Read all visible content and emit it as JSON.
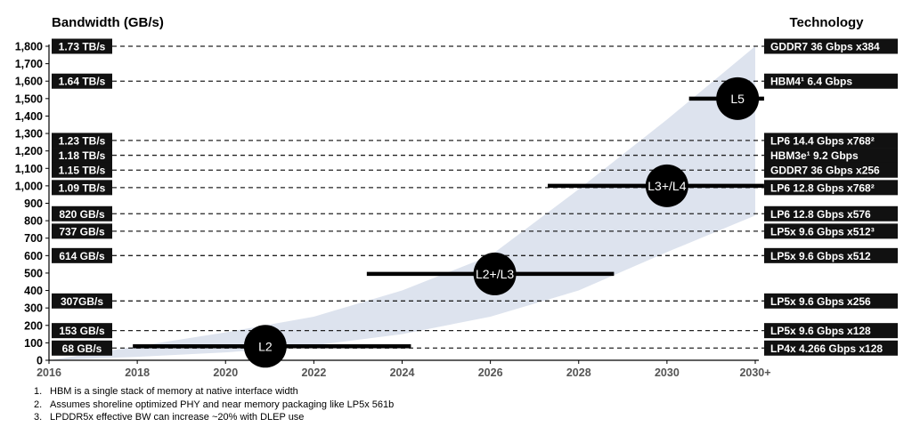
{
  "chart_data": {
    "type": "line",
    "title": "",
    "ylabel": "Bandwidth (GB/s)",
    "right_header": "Technology",
    "xlabel": "",
    "x_ticks": [
      "2016",
      "2018",
      "2020",
      "2022",
      "2024",
      "2026",
      "2028",
      "2030",
      "2030+"
    ],
    "x_tick_values": [
      2016,
      2018,
      2020,
      2022,
      2024,
      2026,
      2028,
      2030,
      2032
    ],
    "xlim": [
      2016,
      2032
    ],
    "ylim": [
      0,
      1800
    ],
    "y_ticks": [
      0,
      100,
      200,
      300,
      400,
      500,
      600,
      700,
      800,
      900,
      1000,
      1100,
      1200,
      1300,
      1400,
      1500,
      1600,
      1700,
      1800
    ],
    "y_tick_labels": [
      "0",
      "100",
      "200",
      "300",
      "400",
      "500",
      "600",
      "700",
      "800",
      "900",
      "1,000",
      "1,100",
      "1,200",
      "1,300",
      "1,400",
      "1,500",
      "1,600",
      "1,700",
      "1,800"
    ],
    "reference_lines": [
      {
        "y": 1800,
        "left_label": "1.73 TB/s",
        "right_label": "GDDR7 36 Gbps x384"
      },
      {
        "y": 1600,
        "left_label": "1.64 TB/s",
        "right_label": "HBM4¹ 6.4 Gbps"
      },
      {
        "y": 1260,
        "left_label": "1.23 TB/s",
        "right_label": "LP6 14.4 Gbps x768²"
      },
      {
        "y": 1175,
        "left_label": "1.18 TB/s",
        "right_label": "HBM3e¹ 9.2 Gbps"
      },
      {
        "y": 1090,
        "left_label": "1.15 TB/s",
        "right_label": "GDDR7 36 Gbps x256"
      },
      {
        "y": 990,
        "left_label": "1.09 TB/s",
        "right_label": "LP6 12.8 Gbps x768²"
      },
      {
        "y": 840,
        "left_label": "820 GB/s",
        "right_label": "LP6 12.8 Gbps x576"
      },
      {
        "y": 740,
        "left_label": "737 GB/s",
        "right_label": "LP5x 9.6 Gbps x512³"
      },
      {
        "y": 600,
        "left_label": "614 GB/s",
        "right_label": "LP5x 9.6 Gbps x512"
      },
      {
        "y": 340,
        "left_label": "307GB/s",
        "right_label": "LP5x 9.6 Gbps x256"
      },
      {
        "y": 170,
        "left_label": "153 GB/s",
        "right_label": "LP5x 9.6 Gbps x128"
      },
      {
        "y": 70,
        "left_label": "68 GB/s",
        "right_label": "LP4x 4.266 Gbps x128"
      }
    ],
    "band": {
      "x": [
        2016,
        2018,
        2020,
        2022,
        2024,
        2026,
        2028,
        2030,
        2032
      ],
      "upper": [
        0,
        80,
        160,
        250,
        400,
        600,
        980,
        1380,
        1800
      ],
      "lower": [
        0,
        20,
        45,
        85,
        150,
        250,
        400,
        620,
        830
      ]
    },
    "levels": [
      {
        "label": "L2",
        "x_start": 2017.9,
        "x_end": 2024.2,
        "y": 80,
        "marker_x": 2020.9,
        "marker_y": 80
      },
      {
        "label": "L2+/L3",
        "x_start": 2023.2,
        "x_end": 2028.8,
        "y": 495,
        "marker_x": 2026.1,
        "marker_y": 495
      },
      {
        "label": "L3+/L4",
        "x_start": 2027.3,
        "x_end": 2032.2,
        "y": 1000,
        "marker_x": 2030.0,
        "marker_y": 1000
      },
      {
        "label": "L5",
        "x_start": 2030.5,
        "x_end": 2032.2,
        "y": 1500,
        "marker_x": 2031.6,
        "marker_y": 1500
      }
    ]
  },
  "footnotes": [
    {
      "num": "1.",
      "text": "HBM is a single stack of memory at native interface width"
    },
    {
      "num": "2.",
      "text": "Assumes shoreline optimized PHY and near memory packaging like LP5x 561b"
    },
    {
      "num": "3.",
      "text": "LPDDR5x effective BW can increase ~20% with DLEP use"
    }
  ]
}
